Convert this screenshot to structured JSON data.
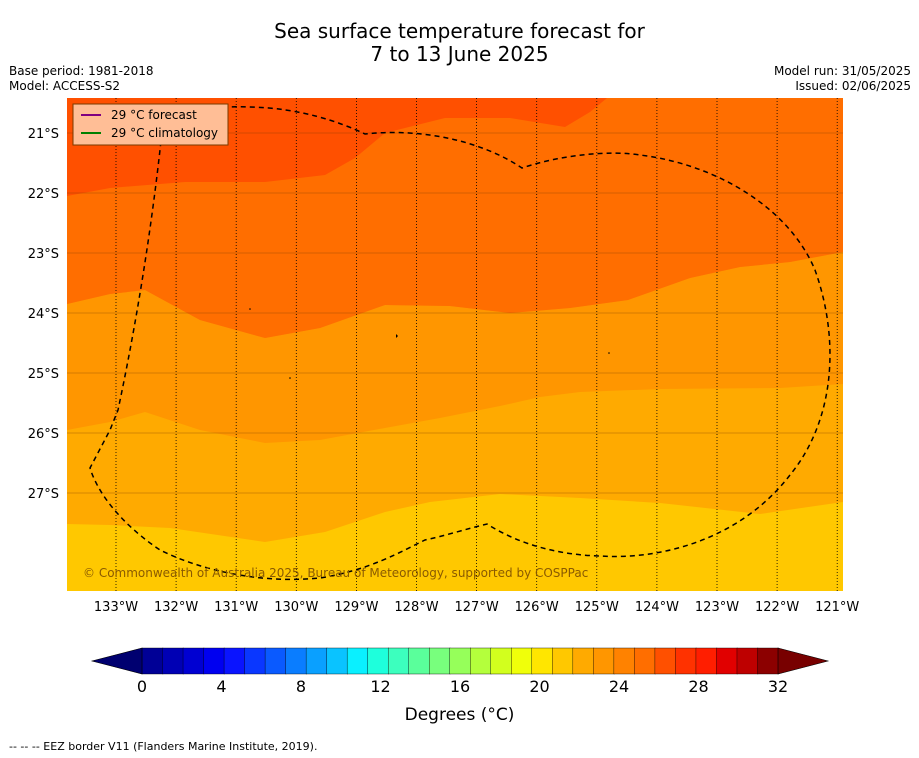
{
  "title": {
    "line1": "Sea surface temperature forecast for",
    "line2": "7 to 13 June 2025"
  },
  "meta": {
    "base_period": "Base period: 1981-2018",
    "model": "Model: ACCESS-S2",
    "model_run": "Model run: 31/05/2025",
    "issued": "Issued: 02/06/2025"
  },
  "map": {
    "lon_labels": [
      "133°W",
      "132°W",
      "131°W",
      "130°W",
      "129°W",
      "128°W",
      "127°W",
      "126°W",
      "125°W",
      "124°W",
      "123°W",
      "122°W",
      "121°W"
    ],
    "lat_labels": [
      "21°S",
      "22°S",
      "23°S",
      "24°S",
      "25°S",
      "26°S",
      "27°S"
    ],
    "copyright": "© Commonwealth of Australia 2025, Bureau of Meteorology, supported by COSPPac"
  },
  "legend": {
    "forecast": "29 °C  forecast",
    "climatology": "29 °C  climatology",
    "forecast_color": "#800080",
    "climatology_color": "#008000"
  },
  "colorbar": {
    "labels": [
      "0",
      "4",
      "8",
      "12",
      "16",
      "20",
      "24",
      "28",
      "32"
    ],
    "title": "Degrees (°C)",
    "colors": [
      "#000096",
      "#0000b4",
      "#0000d2",
      "#0000f0",
      "#0a14ff",
      "#0a37ff",
      "#0a5aff",
      "#0a7dff",
      "#0aa0ff",
      "#0ac3ff",
      "#0af0ff",
      "#1effdc",
      "#3cffbe",
      "#5aff9b",
      "#78ff7d",
      "#96ff5a",
      "#b4ff3c",
      "#d2ff1e",
      "#f0ff0a",
      "#ffe600",
      "#ffc800",
      "#ffaa00",
      "#ff9600",
      "#ff8200",
      "#ff6e00",
      "#ff5000",
      "#ff3200",
      "#ff1e00",
      "#e10000",
      "#be0000",
      "#8c0000"
    ],
    "low_color": "#000070",
    "high_color": "#780000"
  },
  "footer": "--  --  -- EEZ border V11 (Flanders Marine Institute, 2019)."
}
